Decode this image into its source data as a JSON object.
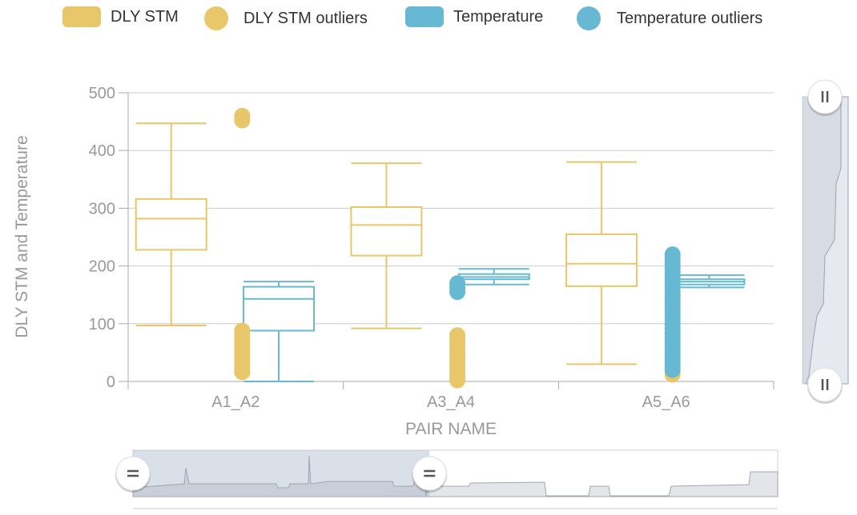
{
  "legend": [
    {
      "label": "DLY STM",
      "kind": "rect",
      "color": "#e8c66a"
    },
    {
      "label": "DLY STM outliers",
      "kind": "dot",
      "color": "#e8c66a"
    },
    {
      "label": "Temperature",
      "kind": "rect",
      "color": "#66b8d3"
    },
    {
      "label": "Temperature outliers",
      "kind": "dot",
      "color": "#66b8d3"
    }
  ],
  "chart_data": {
    "type": "boxplot",
    "title": "",
    "xlabel": "PAIR NAME",
    "ylabel": "DLY STM and Temperature",
    "categories": [
      "A1_A2",
      "A3_A4",
      "A5_A6"
    ],
    "ylim": [
      0,
      500
    ],
    "yticks": [
      0,
      100,
      200,
      300,
      400,
      500
    ],
    "grid": true,
    "legend_position": "top",
    "series": [
      {
        "name": "DLY STM",
        "color": "#e8c66a",
        "boxes": [
          {
            "category": "A1_A2",
            "min": 97,
            "q1": 228,
            "median": 282,
            "q3": 316,
            "max": 447
          },
          {
            "category": "A3_A4",
            "min": 92,
            "q1": 218,
            "median": 271,
            "q3": 302,
            "max": 378
          },
          {
            "category": "A5_A6",
            "min": 30,
            "q1": 165,
            "median": 204,
            "q3": 255,
            "max": 380
          }
        ],
        "outliers": [
          {
            "category": "A1_A2",
            "values": [
              460,
              452,
              88,
              80,
              72,
              64,
              56,
              48,
              40,
              32,
              24,
              16
            ]
          },
          {
            "category": "A3_A4",
            "values": [
              80,
              72,
              64,
              56,
              48,
              40,
              32,
              24,
              16,
              8,
              2
            ]
          },
          {
            "category": "A5_A6",
            "values": [
              12
            ]
          }
        ]
      },
      {
        "name": "Temperature",
        "color": "#66b8d3",
        "boxes": [
          {
            "category": "A1_A2",
            "min": 0,
            "q1": 88,
            "median": 143,
            "q3": 164,
            "max": 173
          },
          {
            "category": "A3_A4",
            "min": 168,
            "q1": 177,
            "median": 181,
            "q3": 186,
            "max": 195
          },
          {
            "category": "A5_A6",
            "min": 163,
            "q1": 168,
            "median": 173,
            "q3": 177,
            "max": 184
          }
        ],
        "outliers": [
          {
            "category": "A3_A4",
            "values": [
              170,
              162,
              155
            ]
          },
          {
            "category": "A5_A6",
            "values": [
              220,
              212,
              204,
              196,
              188,
              180,
              172,
              164,
              156,
              148,
              140,
              132,
              124,
              116,
              108,
              100,
              92,
              84,
              76,
              68,
              60,
              52,
              44,
              36,
              28,
              20
            ]
          }
        ]
      }
    ]
  },
  "navigator": {
    "selected_range": [
      0,
      0.46
    ]
  },
  "vertical_slider": {
    "selected_range": [
      0,
      1
    ]
  }
}
